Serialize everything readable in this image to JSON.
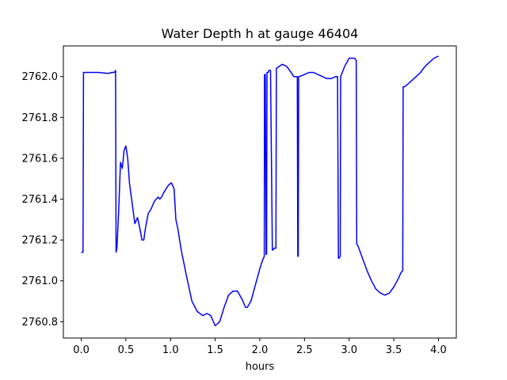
{
  "chart_data": {
    "type": "line",
    "title": "Water Depth h at gauge 46404",
    "xlabel": "hours",
    "ylabel": "",
    "xlim": [
      -0.2,
      4.2
    ],
    "ylim": [
      2760.72,
      2762.15
    ],
    "xticks": [
      0.0,
      0.5,
      1.0,
      1.5,
      2.0,
      2.5,
      3.0,
      3.5,
      4.0
    ],
    "xtick_labels": [
      "0.0",
      "0.5",
      "1.0",
      "1.5",
      "2.0",
      "2.5",
      "3.0",
      "3.5",
      "4.0"
    ],
    "yticks": [
      2760.8,
      2761.0,
      2761.2,
      2761.4,
      2761.6,
      2761.8,
      2762.0
    ],
    "ytick_labels": [
      "2760.8",
      "2761.0",
      "2761.2",
      "2761.4",
      "2761.6",
      "2761.8",
      "2762.0"
    ],
    "grid": false,
    "series": [
      {
        "color": "#0000ff",
        "x": [
          0.0,
          0.02,
          0.025,
          0.1,
          0.2,
          0.3,
          0.34,
          0.37,
          0.385,
          0.39,
          0.4,
          0.42,
          0.44,
          0.46,
          0.48,
          0.5,
          0.52,
          0.54,
          0.57,
          0.6,
          0.63,
          0.66,
          0.68,
          0.7,
          0.72,
          0.75,
          0.78,
          0.82,
          0.86,
          0.88,
          0.9,
          0.92,
          0.95,
          0.98,
          1.01,
          1.04,
          1.06,
          1.08,
          1.12,
          1.18,
          1.24,
          1.3,
          1.36,
          1.41,
          1.45,
          1.5,
          1.55,
          1.6,
          1.65,
          1.7,
          1.75,
          1.8,
          1.84,
          1.86,
          1.9,
          1.95,
          2.0,
          2.03,
          2.05,
          2.052,
          2.06,
          2.07,
          2.075,
          2.08,
          2.095,
          2.1,
          2.12,
          2.14,
          2.145,
          2.16,
          2.18,
          2.185,
          2.25,
          2.3,
          2.35,
          2.38,
          2.4,
          2.42,
          2.425,
          2.43,
          2.435,
          2.44,
          2.5,
          2.55,
          2.6,
          2.65,
          2.7,
          2.75,
          2.8,
          2.85,
          2.87,
          2.88,
          2.885,
          2.9,
          2.905,
          2.95,
          3.0,
          3.03,
          3.06,
          3.08,
          3.085,
          3.1,
          3.15,
          3.2,
          3.25,
          3.3,
          3.35,
          3.4,
          3.45,
          3.5,
          3.55,
          3.58,
          3.6,
          3.605,
          3.62,
          3.65,
          3.7,
          3.75,
          3.8,
          3.85,
          3.9,
          3.95,
          4.0
        ],
        "y": [
          2761.14,
          2761.14,
          2762.02,
          2762.02,
          2762.02,
          2762.015,
          2762.02,
          2762.02,
          2762.03,
          2761.14,
          2761.16,
          2761.35,
          2761.58,
          2761.55,
          2761.64,
          2761.66,
          2761.6,
          2761.48,
          2761.38,
          2761.28,
          2761.31,
          2761.25,
          2761.2,
          2761.2,
          2761.26,
          2761.33,
          2761.35,
          2761.39,
          2761.41,
          2761.4,
          2761.41,
          2761.43,
          2761.45,
          2761.47,
          2761.48,
          2761.45,
          2761.3,
          2761.26,
          2761.15,
          2761.02,
          2760.9,
          2760.85,
          2760.83,
          2760.84,
          2760.83,
          2760.78,
          2760.8,
          2760.87,
          2760.93,
          2760.95,
          2760.95,
          2760.91,
          2760.87,
          2760.87,
          2760.9,
          2760.98,
          2761.06,
          2761.1,
          2761.12,
          2762.01,
          2762.01,
          2761.13,
          2761.13,
          2762.02,
          2762.02,
          2762.03,
          2762.03,
          2761.15,
          2761.15,
          2761.16,
          2761.16,
          2762.04,
          2762.06,
          2762.05,
          2762.02,
          2762.0,
          2762.0,
          2762.0,
          2761.12,
          2761.12,
          2762.0,
          2762.0,
          2762.01,
          2762.02,
          2762.02,
          2762.01,
          2762.0,
          2761.99,
          2761.99,
          2762.0,
          2762.0,
          2761.11,
          2761.11,
          2761.12,
          2762.0,
          2762.05,
          2762.09,
          2762.09,
          2762.09,
          2762.08,
          2761.18,
          2761.17,
          2761.11,
          2761.05,
          2761.0,
          2760.96,
          2760.94,
          2760.93,
          2760.94,
          2760.97,
          2761.01,
          2761.04,
          2761.05,
          2761.95,
          2761.95,
          2761.96,
          2761.98,
          2762.0,
          2762.02,
          2762.05,
          2762.07,
          2762.09,
          2762.1
        ]
      }
    ]
  }
}
